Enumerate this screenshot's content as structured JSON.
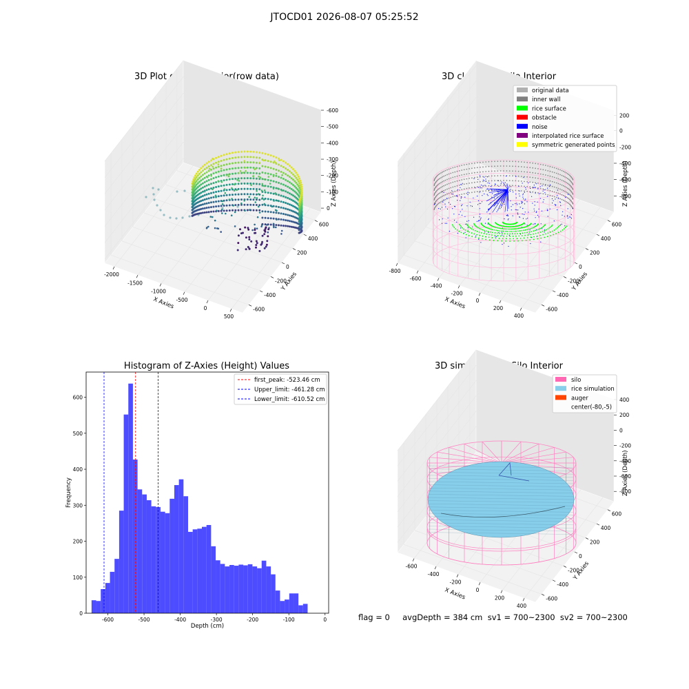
{
  "suptitle": "JTOCD01 2026-08-07 05:25:52",
  "footer": "flag = 0     avgDepth = 384 cm  sv1 = 700~2300  sv2 = 700~2300",
  "chart_data": [
    {
      "type": "scatter",
      "title": "3D Plot of Silo Interior(row data)",
      "xlabel": "X Axies",
      "ylabel": "Y Axies",
      "zlabel": "Z Axies (Depth)",
      "x_ticks": [
        "-2000",
        "-1500",
        "-1000",
        "-500",
        "0",
        "500"
      ],
      "y_ticks": [
        "-600",
        "-400",
        "-200",
        "0",
        "200",
        "400",
        "600"
      ],
      "z_ticks": [
        "0",
        "-100",
        "-200",
        "-300",
        "-400",
        "-500",
        "-600"
      ],
      "colormap": "viridis"
    },
    {
      "type": "scatter",
      "title": "3D classify of Silo Interior",
      "xlabel": "X Axies",
      "ylabel": "Y Axies",
      "zlabel": "Z Axies (Depth)",
      "x_ticks": [
        "-800",
        "-600",
        "-400",
        "-200",
        "0",
        "200",
        "400"
      ],
      "y_ticks": [
        "-600",
        "-400",
        "-200",
        "0",
        "200",
        "400",
        "600"
      ],
      "z_ticks": [
        "200",
        "0",
        "-200",
        "-400",
        "-600",
        "-800"
      ],
      "legend": [
        {
          "label": "original data",
          "color": "#b0b0b0"
        },
        {
          "label": "inner wall",
          "color": "#808080"
        },
        {
          "label": "rice surface",
          "color": "#00ff00"
        },
        {
          "label": "obstacle",
          "color": "#ff0000"
        },
        {
          "label": "noise",
          "color": "#0000ff"
        },
        {
          "label": "interpolated rice surface",
          "color": "#800080"
        },
        {
          "label": "symmetric generated points",
          "color": "#ffff00"
        }
      ]
    },
    {
      "type": "bar",
      "title": "Histogram of Z-Axies (Height) Values",
      "xlabel": "Depth (cm)",
      "ylabel": "Frequency",
      "xlim": [
        -660,
        10
      ],
      "ylim": [
        0,
        670
      ],
      "x_ticks": [
        -600,
        -500,
        -400,
        -300,
        -200,
        -100,
        0
      ],
      "y_ticks": [
        0,
        100,
        200,
        300,
        400,
        500,
        600
      ],
      "bin_start": -645,
      "bin_width": 12.7,
      "values": [
        36,
        34,
        67,
        84,
        115,
        151,
        285,
        552,
        638,
        427,
        344,
        330,
        314,
        297,
        295,
        282,
        278,
        318,
        356,
        372,
        325,
        226,
        233,
        235,
        240,
        245,
        186,
        147,
        137,
        130,
        134,
        132,
        135,
        133,
        136,
        130,
        125,
        146,
        130,
        108,
        63,
        34,
        38,
        55,
        55,
        22,
        26
      ],
      "vlines": [
        {
          "label": "first_peak: -523.46 cm",
          "value": -523.46,
          "color": "#ff0000"
        },
        {
          "label": "Upper_limit: -461.28 cm",
          "value": -461.28,
          "color": "#0000ff"
        },
        {
          "label": "Lower_limit: -610.52 cm",
          "value": -610.52,
          "color": "#0000ff"
        }
      ],
      "color": "#4d4dff"
    },
    {
      "type": "area",
      "title": "3D simulation of Silo Interior",
      "xlabel": "X Axies",
      "ylabel": "Y Axies",
      "zlabel": "Z Axies (Depth)",
      "x_ticks": [
        "-600",
        "-400",
        "-200",
        "0",
        "200",
        "400"
      ],
      "y_ticks": [
        "-600",
        "-400",
        "-200",
        "0",
        "200",
        "400",
        "600"
      ],
      "z_ticks": [
        "400",
        "200",
        "0",
        "-200",
        "-400",
        "-600",
        "-800"
      ],
      "legend": [
        {
          "label": "silo",
          "color": "#ff69b4"
        },
        {
          "label": "rice simulation",
          "color": "#87ceeb"
        },
        {
          "label": "auger",
          "color": "#ff4500"
        },
        {
          "label": "center(-80,-5)",
          "color": "none"
        }
      ]
    }
  ]
}
